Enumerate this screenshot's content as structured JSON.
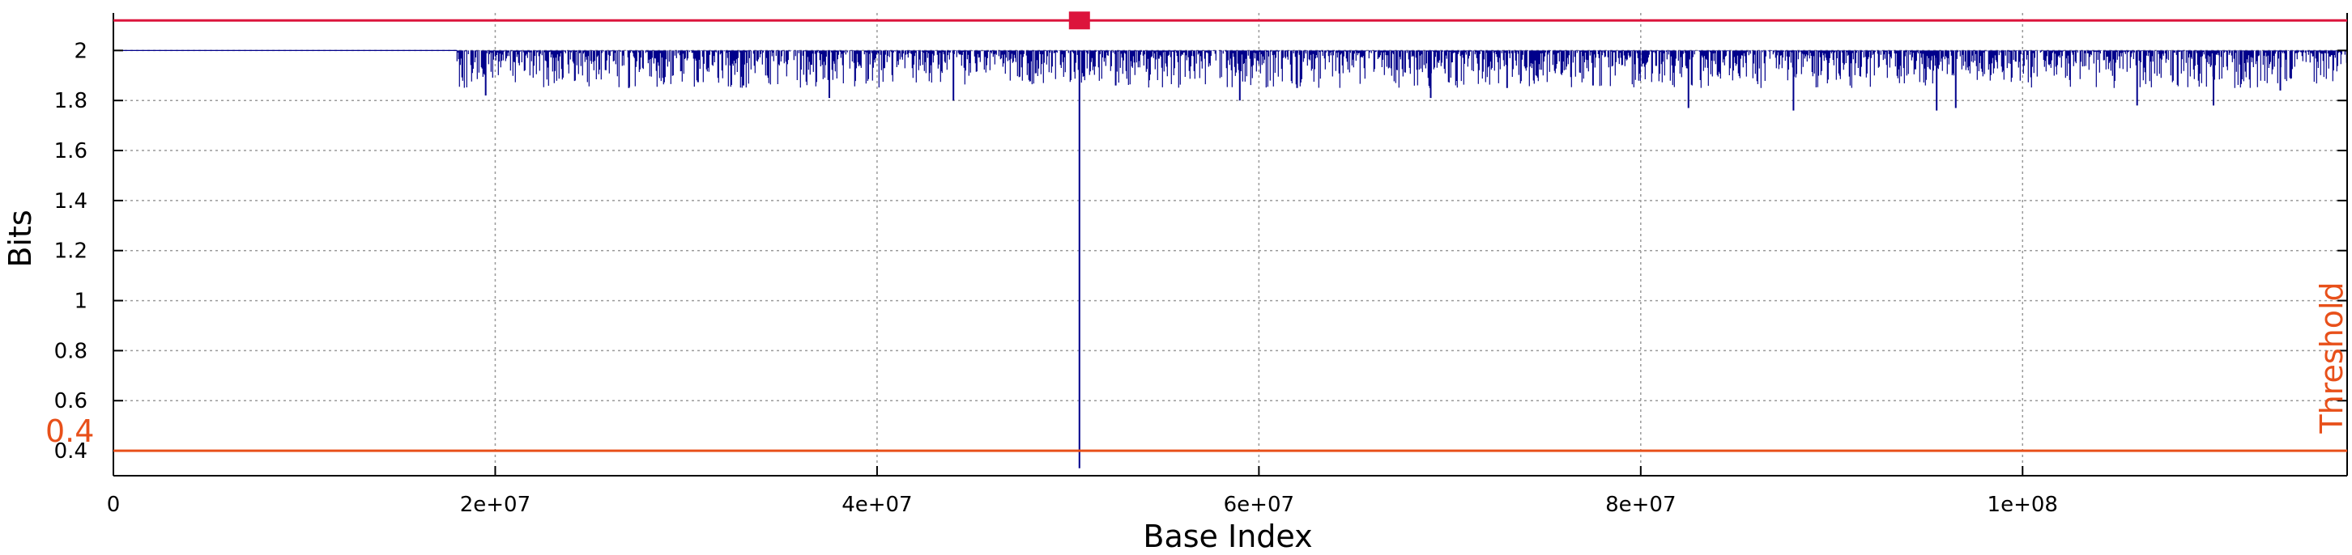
{
  "chart_data": {
    "type": "line",
    "title": "",
    "xlabel": "Base Index",
    "ylabel": "Bits",
    "xlim": [
      0,
      117000000
    ],
    "ylim": [
      0.3,
      2.15
    ],
    "grid": true,
    "x_ticks": [
      {
        "value": 0,
        "label": "0"
      },
      {
        "value": 20000000,
        "label": "2e+07"
      },
      {
        "value": 40000000,
        "label": "4e+07"
      },
      {
        "value": 60000000,
        "label": "6e+07"
      },
      {
        "value": 80000000,
        "label": "8e+07"
      },
      {
        "value": 100000000,
        "label": "1e+08"
      }
    ],
    "y_ticks": [
      {
        "value": 0.4,
        "label": "0.4"
      },
      {
        "value": 0.6,
        "label": "0.6"
      },
      {
        "value": 0.8,
        "label": "0.8"
      },
      {
        "value": 1.0,
        "label": "1"
      },
      {
        "value": 1.2,
        "label": "1.2"
      },
      {
        "value": 1.4,
        "label": "1.4"
      },
      {
        "value": 1.6,
        "label": "1.6"
      },
      {
        "value": 1.8,
        "label": "1.8"
      },
      {
        "value": 2.0,
        "label": "2"
      }
    ],
    "series": [
      {
        "color": "#00008b",
        "flat_segment": {
          "x_start": 0,
          "x_end": 18000000,
          "y": 2.0
        },
        "noisy_segment": {
          "x_start": 18000000,
          "x_end": 117000000,
          "y_top": 2.0,
          "typical_min": 1.85
        },
        "dips": [
          {
            "x": 19500000,
            "y": 1.82
          },
          {
            "x": 27000000,
            "y": 1.85
          },
          {
            "x": 33000000,
            "y": 1.86
          },
          {
            "x": 37500000,
            "y": 1.81
          },
          {
            "x": 44000000,
            "y": 1.8
          },
          {
            "x": 50600000,
            "y": 0.33
          },
          {
            "x": 52500000,
            "y": 1.86
          },
          {
            "x": 59000000,
            "y": 1.8
          },
          {
            "x": 62000000,
            "y": 1.85
          },
          {
            "x": 69000000,
            "y": 1.81
          },
          {
            "x": 73000000,
            "y": 1.85
          },
          {
            "x": 77500000,
            "y": 1.86
          },
          {
            "x": 82500000,
            "y": 1.77
          },
          {
            "x": 88000000,
            "y": 1.76
          },
          {
            "x": 95500000,
            "y": 1.76
          },
          {
            "x": 96500000,
            "y": 1.77
          },
          {
            "x": 106000000,
            "y": 1.78
          },
          {
            "x": 110000000,
            "y": 1.78
          },
          {
            "x": 113500000,
            "y": 1.84
          }
        ]
      }
    ],
    "threshold": {
      "value": 0.4,
      "value_label": "0.4",
      "label": "Threshold",
      "color": "#e8501a"
    },
    "top_line": {
      "value": 2.12,
      "color": "#dc143c",
      "marker_x": 50600000
    }
  }
}
